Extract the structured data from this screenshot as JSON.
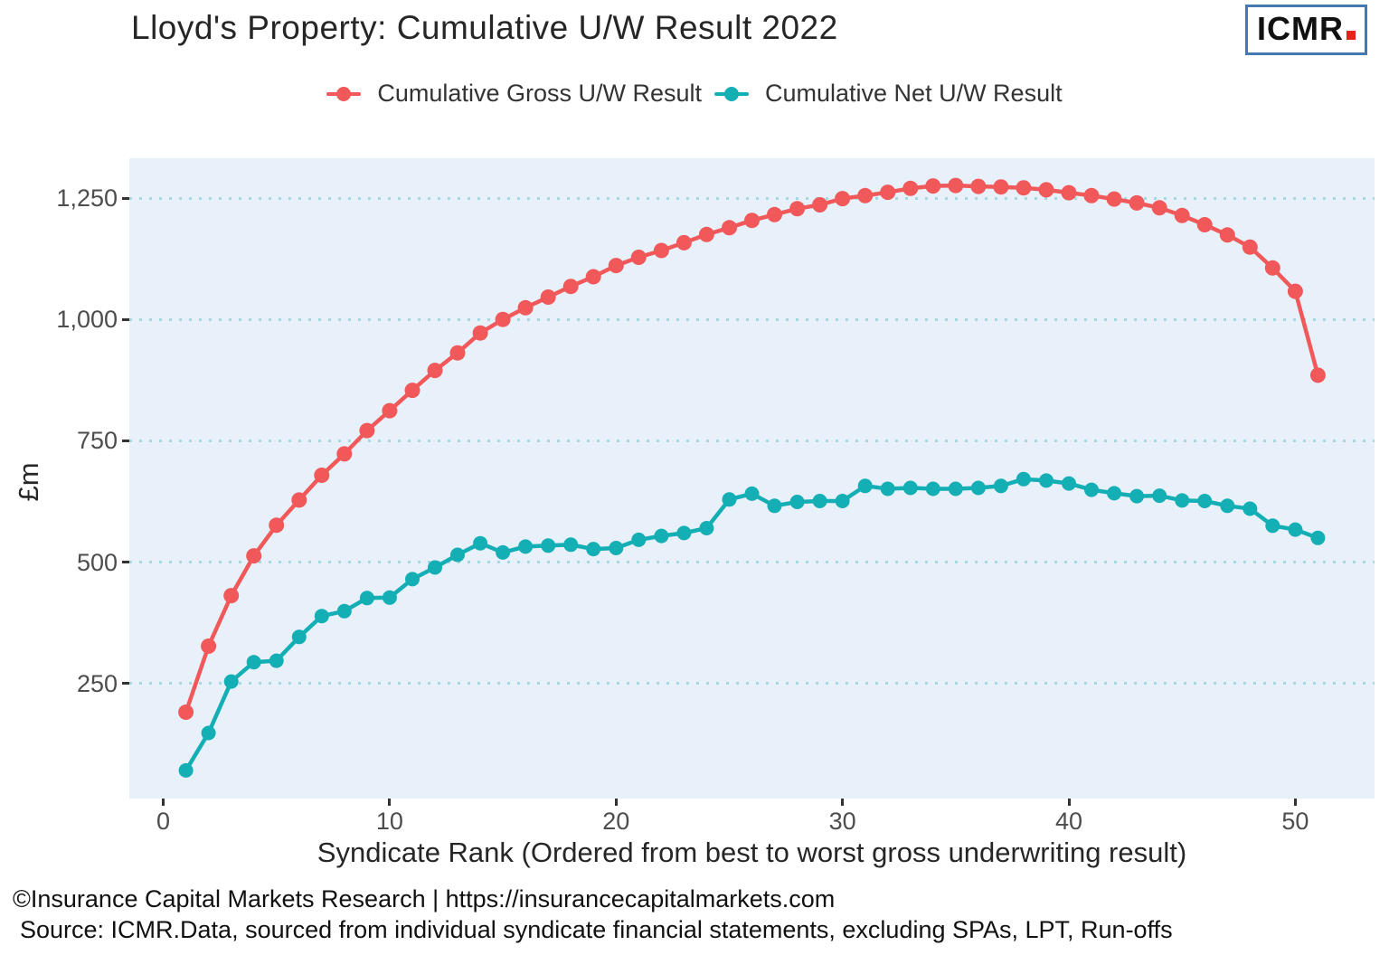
{
  "title": "Lloyd's Property: Cumulative U/W Result 2022",
  "logo": {
    "text": "ICMR"
  },
  "footer": {
    "line1": "©Insurance Capital Markets Research | https://insurancecapitalmarkets.com",
    "line2": "Source: ICMR.Data, sourced from individual syndicate financial statements, excluding SPAs, LPT, Run-offs"
  },
  "chart_data": {
    "type": "line",
    "title": "Lloyd's Property: Cumulative U/W Result 2022",
    "xlabel": "Syndicate Rank (Ordered from best to worst gross underwriting result)",
    "ylabel": "£m",
    "x": [
      1,
      2,
      3,
      4,
      5,
      6,
      7,
      8,
      9,
      10,
      11,
      12,
      13,
      14,
      15,
      16,
      17,
      18,
      19,
      20,
      21,
      22,
      23,
      24,
      25,
      26,
      27,
      28,
      29,
      30,
      31,
      32,
      33,
      34,
      35,
      36,
      37,
      38,
      39,
      40,
      41,
      42,
      43,
      44,
      45,
      46,
      47,
      48,
      49,
      50,
      51
    ],
    "series": [
      {
        "name": "Cumulative Gross U/W Result",
        "color": "#F0585A",
        "values": [
          191,
          327,
          431,
          513,
          576,
          628,
          679,
          723,
          771,
          812,
          854,
          895,
          931,
          972,
          1000,
          1024,
          1046,
          1068,
          1088,
          1111,
          1128,
          1142,
          1158,
          1175,
          1189,
          1204,
          1216,
          1228,
          1236,
          1249,
          1255,
          1262,
          1270,
          1275,
          1276,
          1274,
          1273,
          1271,
          1267,
          1261,
          1255,
          1248,
          1240,
          1230,
          1214,
          1195,
          1174,
          1149,
          1106,
          1058,
          885
        ]
      },
      {
        "name": "Cumulative Net U/W Result",
        "color": "#14AEB5",
        "values": [
          71,
          148,
          254,
          294,
          297,
          346,
          389,
          399,
          426,
          427,
          465,
          489,
          515,
          539,
          520,
          532,
          534,
          536,
          527,
          529,
          546,
          554,
          560,
          570,
          629,
          641,
          616,
          624,
          626,
          626,
          657,
          651,
          653,
          651,
          651,
          653,
          657,
          671,
          668,
          662,
          649,
          642,
          636,
          637,
          627,
          626,
          616,
          610,
          575,
          567,
          550
        ]
      }
    ],
    "xlim": [
      -1.5,
      53.5
    ],
    "ylim": [
      13,
      1332
    ],
    "xticks": [
      {
        "value": 0,
        "label": "0"
      },
      {
        "value": 10,
        "label": "10"
      },
      {
        "value": 20,
        "label": "20"
      },
      {
        "value": 30,
        "label": "30"
      },
      {
        "value": 40,
        "label": "40"
      },
      {
        "value": 50,
        "label": "50"
      }
    ],
    "yticks": [
      {
        "value": 250,
        "label": "250"
      },
      {
        "value": 500,
        "label": "500"
      },
      {
        "value": 750,
        "label": "750"
      },
      {
        "value": 1000,
        "label": "1,000"
      },
      {
        "value": 1250,
        "label": "1,250"
      }
    ],
    "grid": "horizontal-dotted",
    "legend_position": "top-center",
    "plot_bg": "#E8F1FA",
    "grid_color": "#A5D8E3",
    "tick_color": "#333333"
  }
}
